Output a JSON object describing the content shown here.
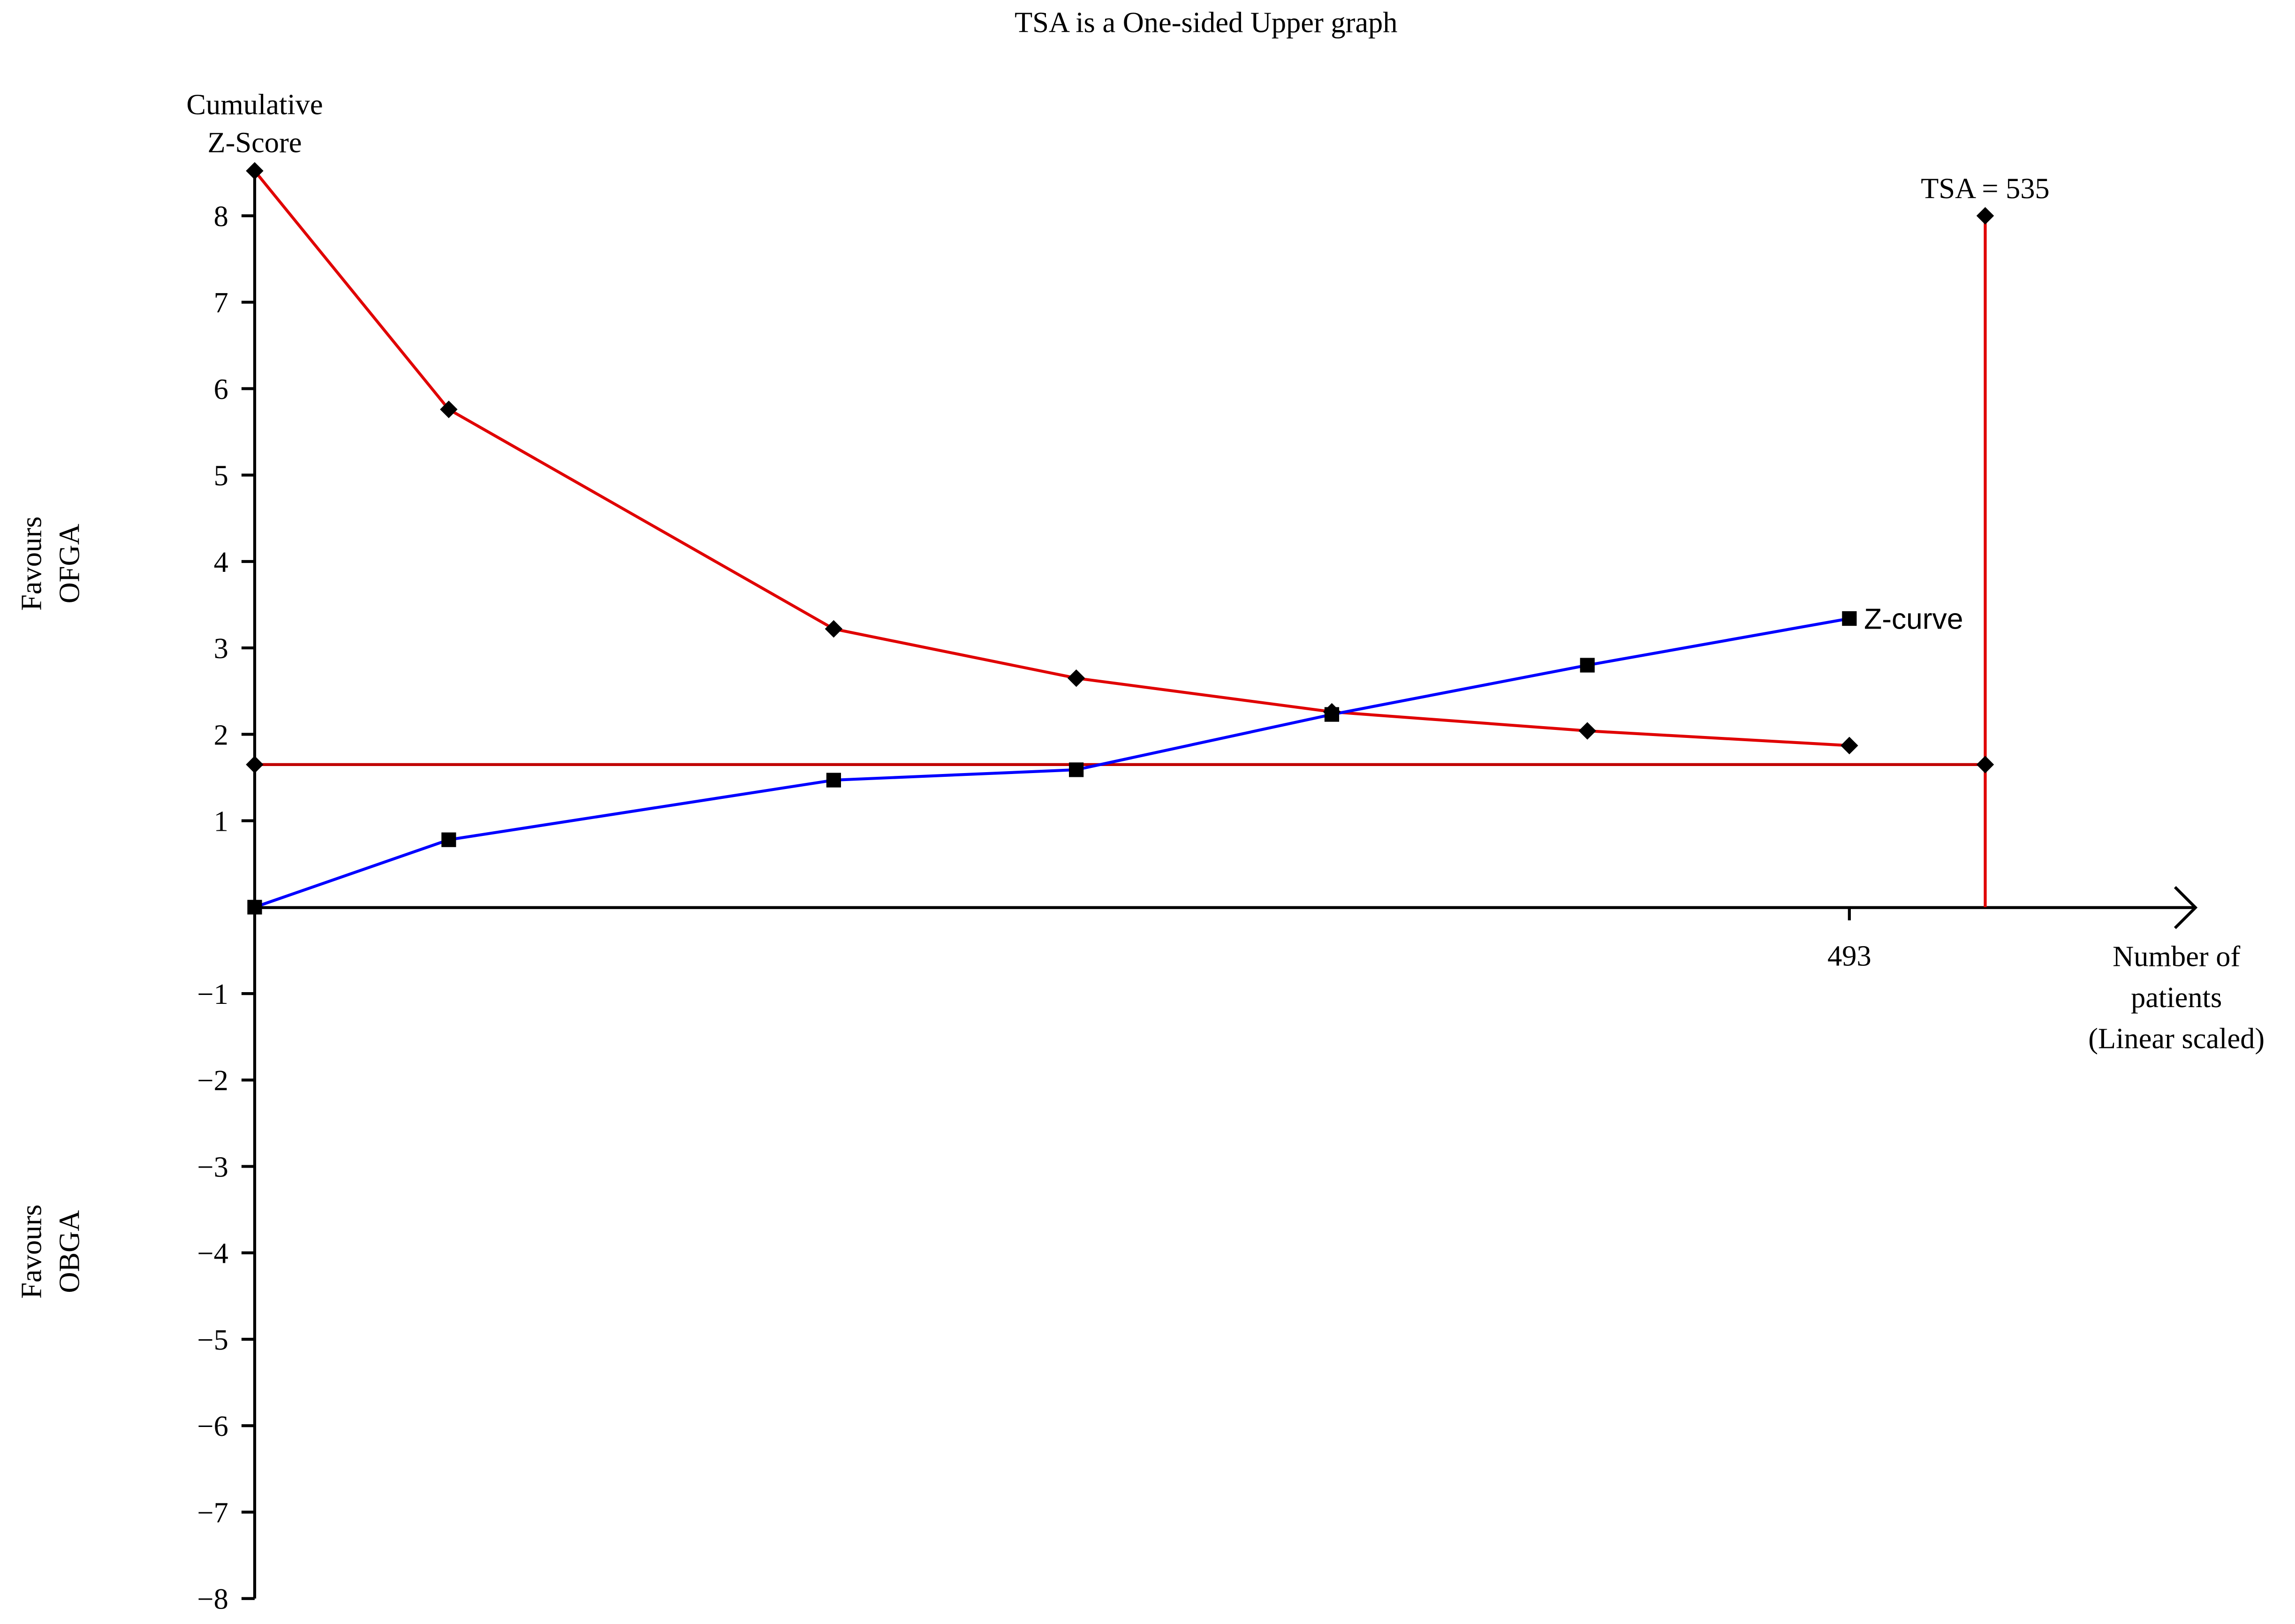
{
  "chart_data": {
    "type": "line",
    "title": "TSA is a One-sided Upper graph",
    "ylabel": [
      "Cumulative",
      "Z-Score"
    ],
    "xlabel": [
      "Number of",
      "patients",
      "(Linear scaled)"
    ],
    "annotations": [
      [
        "Favours",
        "OFGA"
      ],
      [
        "Favours",
        "OBGA"
      ]
    ],
    "xlim": [
      0,
      600
    ],
    "ylim": [
      -8,
      8.6
    ],
    "xticks": [
      493
    ],
    "yticks": [
      {
        "value": -8,
        "label": "−8"
      },
      {
        "value": -7,
        "label": "−7"
      },
      {
        "value": -6,
        "label": "−6"
      },
      {
        "value": -5,
        "label": "−5"
      },
      {
        "value": -4,
        "label": "−4"
      },
      {
        "value": -3,
        "label": "−3"
      },
      {
        "value": -2,
        "label": "−2"
      },
      {
        "value": -1,
        "label": "−1"
      },
      1,
      2,
      3,
      4,
      5,
      6,
      7,
      8
    ],
    "series": [
      {
        "name": "Z-curve",
        "color": "#0000ff",
        "marker": "square",
        "x": [
          0,
          60,
          179,
          254,
          333,
          412,
          493
        ],
        "values": [
          0,
          0.78,
          1.47,
          1.59,
          2.23,
          2.8,
          3.34
        ]
      }
    ],
    "boundary": {
      "color": "#e00000",
      "marker": "diamond",
      "x": [
        0,
        60,
        179,
        254,
        333,
        412,
        493
      ],
      "values": [
        8.52,
        5.76,
        3.22,
        2.65,
        2.26,
        2.04,
        1.87
      ]
    },
    "threshold": {
      "color": "#c00000",
      "marker": "diamond",
      "x": [
        0,
        535
      ],
      "values": [
        1.65,
        1.65
      ]
    },
    "tsa": {
      "label": "TSA = 535",
      "color": "#e00000",
      "marker": "diamond",
      "x": [
        535,
        535
      ],
      "values": [
        0,
        8
      ]
    }
  }
}
